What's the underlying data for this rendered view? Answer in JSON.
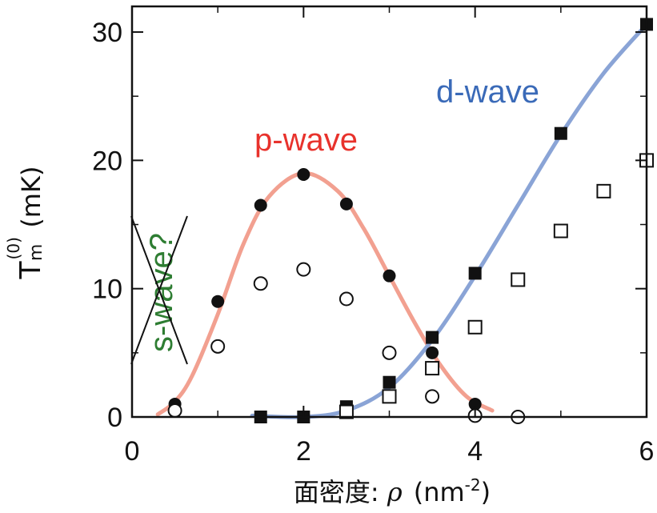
{
  "chart_data": {
    "type": "scatter",
    "xlabel": {
      "prefix": "面密度: ",
      "symbol": "ρ",
      "unit_open": "(nm",
      "unit_sup": "-2",
      "unit_close": ")"
    },
    "ylabel": {
      "base": "T",
      "sup": "(0)",
      "sub": "m",
      "unit": "(mK)"
    },
    "xlim": [
      0,
      6
    ],
    "ylim": [
      0,
      32
    ],
    "xticks": [
      "0",
      "2",
      "4",
      "6"
    ],
    "yticks": [
      "0",
      "10",
      "20",
      "30"
    ],
    "grid": false,
    "series": [
      {
        "marker": "filled-circle",
        "points": [
          [
            0.5,
            1.0
          ],
          [
            1.0,
            9.0
          ],
          [
            1.5,
            16.5
          ],
          [
            2.0,
            18.9
          ],
          [
            2.5,
            16.6
          ],
          [
            3.0,
            11.0
          ],
          [
            3.5,
            5.0
          ],
          [
            4.0,
            1.0
          ]
        ]
      },
      {
        "marker": "open-circle",
        "points": [
          [
            0.5,
            0.5
          ],
          [
            1.0,
            5.5
          ],
          [
            1.5,
            10.4
          ],
          [
            2.0,
            11.5
          ],
          [
            2.5,
            9.2
          ],
          [
            3.0,
            5.0
          ],
          [
            3.5,
            1.6
          ],
          [
            4.0,
            0.1
          ],
          [
            4.5,
            0.0
          ]
        ]
      },
      {
        "marker": "filled-square",
        "points": [
          [
            1.5,
            0.0
          ],
          [
            2.0,
            0.0
          ],
          [
            2.5,
            0.8
          ],
          [
            3.0,
            2.7
          ],
          [
            3.5,
            6.2
          ],
          [
            4.0,
            11.2
          ],
          [
            5.0,
            22.1
          ],
          [
            6.0,
            30.6
          ]
        ]
      },
      {
        "marker": "open-square",
        "points": [
          [
            2.5,
            0.4
          ],
          [
            3.0,
            1.6
          ],
          [
            3.5,
            3.8
          ],
          [
            4.0,
            7.0
          ],
          [
            4.5,
            10.7
          ],
          [
            5.0,
            14.5
          ],
          [
            5.5,
            17.6
          ],
          [
            6.0,
            20.0
          ]
        ]
      }
    ],
    "curves": [
      {
        "label": "p-wave",
        "color": "#f2a090",
        "points": [
          [
            0.3,
            0.2
          ],
          [
            0.5,
            1.2
          ],
          [
            0.7,
            3.2
          ],
          [
            1.0,
            8.0
          ],
          [
            1.3,
            13.5
          ],
          [
            1.6,
            17.2
          ],
          [
            2.0,
            19.0
          ],
          [
            2.4,
            17.6
          ],
          [
            2.7,
            14.7
          ],
          [
            3.0,
            11.0
          ],
          [
            3.3,
            7.3
          ],
          [
            3.6,
            4.0
          ],
          [
            3.9,
            1.6
          ],
          [
            4.2,
            0.5
          ]
        ]
      },
      {
        "label": "d-wave",
        "color": "#8aa4d6",
        "points": [
          [
            1.4,
            0.1
          ],
          [
            2.0,
            0.0
          ],
          [
            2.5,
            0.5
          ],
          [
            3.0,
            2.3
          ],
          [
            3.5,
            6.0
          ],
          [
            4.0,
            11.0
          ],
          [
            4.5,
            16.5
          ],
          [
            5.0,
            22.0
          ],
          [
            5.5,
            26.8
          ],
          [
            6.0,
            30.6
          ]
        ]
      }
    ],
    "annotations": [
      {
        "text": "p-wave",
        "color": "#e8322c"
      },
      {
        "text": "d-wave",
        "color": "#3a6ab8"
      },
      {
        "text": "s-wave?",
        "color": "#2e7d32",
        "crossed_out": true
      }
    ]
  }
}
